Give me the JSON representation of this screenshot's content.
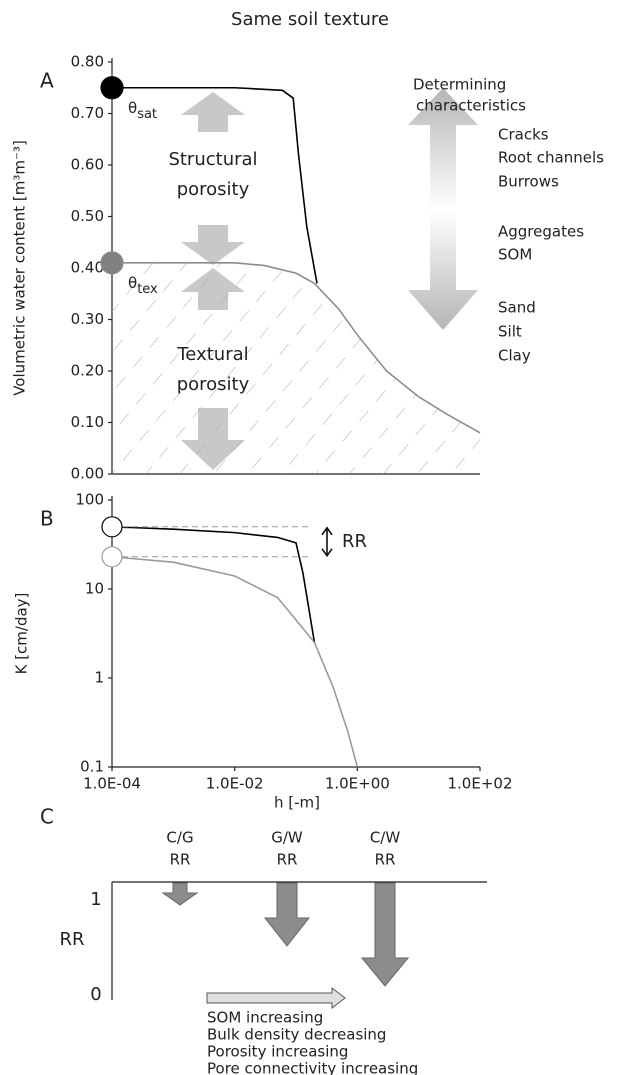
{
  "title": "Same soil texture",
  "chart_data": [
    {
      "type": "line",
      "panel": "A",
      "ylabel": "Volumetric water content [m³m⁻³]",
      "xscale": "log",
      "xlim": [
        0.0001,
        100
      ],
      "ylim": [
        0,
        0.8
      ],
      "yticks": [
        {
          "value": 0,
          "label": "0.00"
        },
        {
          "value": 0.1,
          "label": "0.10"
        },
        {
          "value": 0.2,
          "label": "0.20"
        },
        {
          "value": 0.3,
          "label": "0.30"
        },
        {
          "value": 0.4,
          "label": "0.40"
        },
        {
          "value": 0.5,
          "label": "0.50"
        },
        {
          "value": 0.6,
          "label": "0.60"
        },
        {
          "value": 0.7,
          "label": "0.70"
        },
        {
          "value": 0.8,
          "label": "0.80"
        }
      ],
      "series": [
        {
          "color": "#000000",
          "marker_fill": "#000000",
          "x": [
            0.0001,
            0.01,
            0.06,
            0.09,
            0.11,
            0.15,
            0.22
          ],
          "values": [
            0.75,
            0.75,
            0.745,
            0.73,
            0.62,
            0.48,
            0.37
          ]
        },
        {
          "color": "#8c8c8c",
          "marker_fill": "#808080",
          "hatch": true,
          "x": [
            0.0001,
            0.001,
            0.01,
            0.03,
            0.1,
            0.2,
            0.5,
            1,
            3,
            10,
            30,
            100
          ],
          "values": [
            0.41,
            0.41,
            0.41,
            0.405,
            0.39,
            0.37,
            0.32,
            0.27,
            0.2,
            0.15,
            0.115,
            0.08
          ]
        }
      ],
      "annotations": {
        "theta_sat": {
          "symbol": "θ",
          "subscript": "sat"
        },
        "theta_tex": {
          "symbol": "θ",
          "subscript": "tex"
        },
        "structural": [
          "Structural",
          "porosity"
        ],
        "textural": [
          "Textural",
          "porosity"
        ],
        "characteristics_title": [
          "Determining",
          "characteristics"
        ],
        "characteristics": [
          "Cracks",
          "Root channels",
          "Burrows",
          "Aggregates",
          "SOM",
          "Sand",
          "Silt",
          "Clay"
        ]
      }
    },
    {
      "type": "line",
      "panel": "B",
      "ylabel": "K [cm/day]",
      "xlabel": "h [-m]",
      "xscale": "log",
      "yscale": "log",
      "xlim": [
        0.0001,
        100
      ],
      "ylim": [
        0.1,
        100
      ],
      "xticks": [
        {
          "value": 0.0001,
          "label": "1.0E-04"
        },
        {
          "value": 0.01,
          "label": "1.0E-02"
        },
        {
          "value": 1,
          "label": "1.0E+00"
        },
        {
          "value": 100,
          "label": "1.0E+02"
        }
      ],
      "yticks": [
        0.1,
        1,
        10,
        100
      ],
      "series": [
        {
          "color": "#000000",
          "marker_fill": "#ffffff",
          "x": [
            0.0001,
            0.001,
            0.01,
            0.05,
            0.1,
            0.13,
            0.2
          ],
          "values": [
            50,
            47,
            43,
            38,
            33,
            15,
            2.5
          ]
        },
        {
          "color": "#9a9a9a",
          "marker_fill": "#ffffff",
          "x": [
            0.0001,
            0.001,
            0.01,
            0.05,
            0.1,
            0.2,
            0.4,
            0.7,
            1
          ],
          "values": [
            23,
            20,
            14,
            8,
            4.5,
            2.5,
            0.8,
            0.25,
            0.1
          ]
        }
      ],
      "annotation": "RR"
    }
  ],
  "panel_c": {
    "panel": "C",
    "ylabel": "RR",
    "yticks": [
      0,
      1
    ],
    "groups": [
      {
        "top": "C/G",
        "bottom": "RR"
      },
      {
        "top": "G/W",
        "bottom": "RR"
      },
      {
        "top": "C/W",
        "bottom": "RR"
      }
    ],
    "notes": [
      "SOM increasing",
      "Bulk density decreasing",
      "Porosity increasing",
      "Pore connectivity increasing"
    ]
  }
}
